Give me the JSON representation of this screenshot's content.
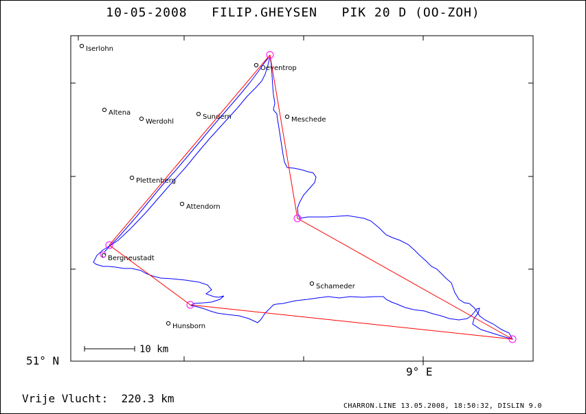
{
  "title": "10-05-2008   FILIP.GHEYSEN   PIK 20 D (OO-ZOH)",
  "axes": {
    "lat_label": "51° N",
    "lon_label": "9° E"
  },
  "scale_label": "10 km",
  "distance_text": "Vrije Vlucht:  220.3 km",
  "footer": "CHARRON.LINE 13.05.2008, 18:50:32, DISLIN 9.0",
  "colors": {
    "task_line": "#ff0000",
    "track": "#0000ff",
    "turnpoint": "#ff00ff",
    "frame": "#000000"
  },
  "towns": [
    {
      "name": "Iserlohn"
    },
    {
      "name": "Oeventrop"
    },
    {
      "name": "Altena"
    },
    {
      "name": "Werdohl"
    },
    {
      "name": "Sundern"
    },
    {
      "name": "Meschede"
    },
    {
      "name": "Plettenberg"
    },
    {
      "name": "Attendorn"
    },
    {
      "name": "Bergneustadt"
    },
    {
      "name": "Schameder"
    },
    {
      "name": "Hunsborn"
    }
  ]
}
